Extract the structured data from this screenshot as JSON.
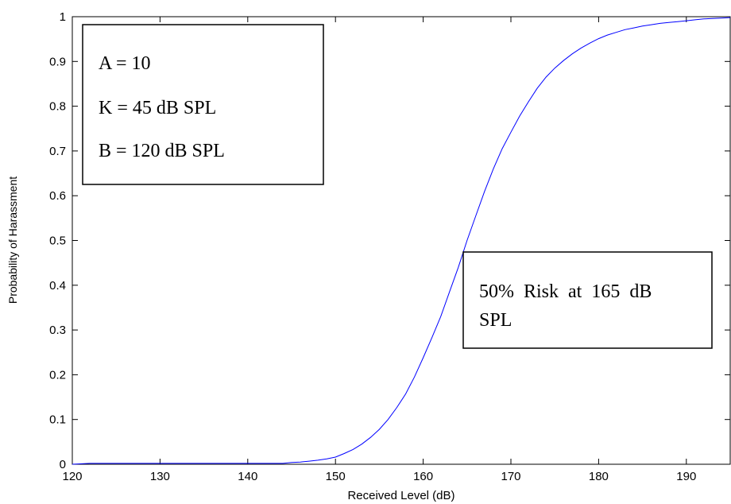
{
  "chart_data": {
    "type": "line",
    "title": "",
    "xlabel": "Received Level (dB)",
    "ylabel": "Probability of Harassment",
    "xlim": [
      120,
      195
    ],
    "ylim": [
      0,
      1
    ],
    "xticks": [
      120,
      130,
      140,
      150,
      160,
      170,
      180,
      190
    ],
    "yticks": [
      0,
      0.1,
      0.2,
      0.3,
      0.4,
      0.5,
      0.6,
      0.7,
      0.8,
      0.9,
      1
    ],
    "xtick_labels": [
      "120",
      "130",
      "140",
      "150",
      "160",
      "170",
      "180",
      "190"
    ],
    "ytick_labels": [
      "0",
      "0.1",
      "0.2",
      "0.3",
      "0.4",
      "0.5",
      "0.6",
      "0.7",
      "0.8",
      "0.9",
      "1"
    ],
    "grid": false,
    "line_color": "#0000ff",
    "series": [
      {
        "x": [
          120,
          122,
          125,
          130,
          135,
          140,
          144,
          145,
          146,
          147,
          148,
          149,
          150,
          151,
          152,
          153,
          154,
          155,
          156,
          157,
          158,
          159,
          160,
          161,
          162,
          163,
          164,
          165,
          166,
          167,
          168,
          169,
          170,
          171,
          172,
          173,
          174,
          175,
          176,
          177,
          178,
          179,
          180,
          181,
          182,
          183,
          184,
          185,
          186,
          187,
          188,
          189,
          190,
          191,
          192,
          193,
          194,
          195
        ],
        "y": [
          0,
          0.002,
          0.002,
          0.002,
          0.002,
          0.002,
          0.002,
          0.004,
          0.005,
          0.007,
          0.009,
          0.012,
          0.016,
          0.024,
          0.033,
          0.045,
          0.06,
          0.078,
          0.1,
          0.127,
          0.157,
          0.195,
          0.238,
          0.283,
          0.33,
          0.385,
          0.44,
          0.5,
          0.555,
          0.61,
          0.66,
          0.705,
          0.742,
          0.778,
          0.81,
          0.84,
          0.865,
          0.885,
          0.902,
          0.917,
          0.93,
          0.941,
          0.951,
          0.959,
          0.965,
          0.971,
          0.975,
          0.979,
          0.982,
          0.985,
          0.987,
          0.989,
          0.991,
          0.993,
          0.995,
          0.996,
          0.997,
          0.998
        ]
      }
    ],
    "annotations": {
      "params": [
        "A = 10",
        "K = 45 dB SPL",
        "B = 120 dB SPL"
      ],
      "risk": [
        "50%  Risk  at  165  dB",
        "SPL"
      ]
    }
  }
}
